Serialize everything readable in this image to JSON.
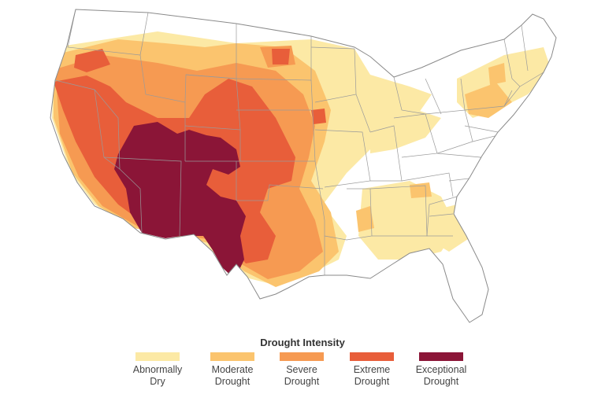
{
  "legend": {
    "title": "Drought Intensity",
    "items": [
      {
        "line1": "Abnormally",
        "line2": "Dry",
        "color": "#fce9a5"
      },
      {
        "line1": "Moderate",
        "line2": "Drought",
        "color": "#fbc46e"
      },
      {
        "line1": "Severe",
        "line2": "Drought",
        "color": "#f69a52"
      },
      {
        "line1": "Extreme",
        "line2": "Drought",
        "color": "#e85e3a"
      },
      {
        "line1": "Exceptional",
        "line2": "Drought",
        "color": "#8b1537"
      }
    ]
  },
  "colors": {
    "land": "#ffffff",
    "border": "#9a9a9a",
    "outline": "#8a8a8a"
  }
}
